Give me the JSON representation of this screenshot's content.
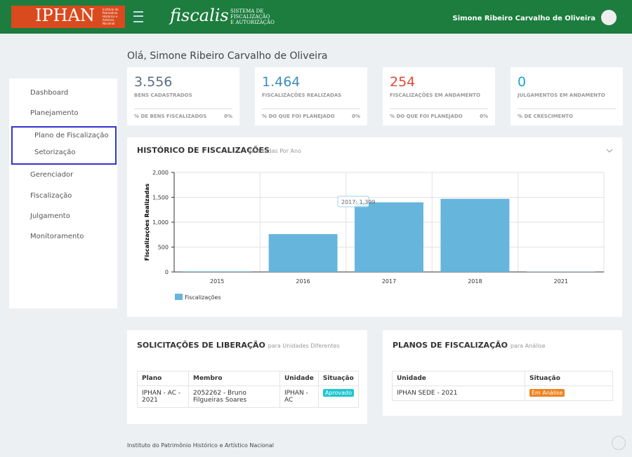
{
  "header": {
    "logo": "IPHAN",
    "logo_caption": "Instituto do Patrimônio Histórico e Artístico Nacional",
    "app_name": "fiscalis",
    "app_subtitle": [
      "SISTEMA DE",
      "FISCALIZAÇÃO",
      "E AUTORIZAÇÃO"
    ],
    "user": "Simone Ribeiro Carvalho de Oliveira"
  },
  "greeting": "Olá, Simone Ribeiro Carvalho de Oliveira",
  "sidebar": {
    "items": [
      "Dashboard",
      "Planejamento",
      "Gerenciador",
      "Fiscalização",
      "Julgamento",
      "Monitoramento"
    ],
    "submenu": [
      "Plano de Fiscalização",
      "Setorização"
    ]
  },
  "cards": [
    {
      "value": "3.556",
      "label": "BENS CADASTRADOS",
      "footer": "% DE BENS FISCALIZADOS",
      "percent": "0%"
    },
    {
      "value": "1.464",
      "label": "FISCALIZAÇÕES REALIZADAS",
      "footer": "% DO QUE FOI PLANEJADO",
      "percent": "0%"
    },
    {
      "value": "254",
      "label": "FISCALIZAÇÕES EM ANDAMENTO",
      "footer": "% DO QUE FOI PLANEJADO",
      "percent": "0%"
    },
    {
      "value": "0",
      "label": "JULGAMENTOS EM ANDAMENTO",
      "footer": "% DE CRESCIMENTO",
      "percent": ""
    }
  ],
  "chart_data": {
    "type": "bar",
    "title": "HISTÓRICO DE FISCALIZAÇÕES",
    "subtitle": "Realizadas Por Ano",
    "y_label": "Fiscalizações Realizadas",
    "categories": [
      "2015",
      "2016",
      "2017",
      "2018",
      "2021"
    ],
    "series": [
      {
        "name": "Fiscalizações",
        "color": "#65b5dc",
        "values": [
          12,
          760,
          1399,
          1470,
          5
        ]
      }
    ],
    "ylim": [
      0,
      2000
    ],
    "yticks": [
      0,
      {
        "value": 500,
        "label": "500"
      },
      {
        "value": 1000,
        "label": "1,000"
      },
      {
        "value": 1500,
        "label": "1,500"
      },
      {
        "value": 2000,
        "label": "2,000"
      }
    ],
    "grid": true,
    "tooltip": "2017: 1,399"
  },
  "solicitacoes": {
    "title": "SOLICITAÇÕES DE LIBERAÇÃO",
    "subtitle": "para Unidades Diferentes",
    "columns": [
      "Plano",
      "Membro",
      "Unidade",
      "Situação"
    ],
    "rows": [
      [
        "IPHAN - AC - 2021",
        "2052262 - Bruno Filgueiras Soares",
        "IPHAN - AC",
        "Aprovado"
      ]
    ]
  },
  "planos": {
    "title": "PLANOS DE FISCALIZAÇÃO",
    "subtitle": "para Análise",
    "columns": [
      "Unidade",
      "Situação"
    ],
    "rows": [
      [
        "IPHAN SEDE - 2021",
        "Em Análise"
      ]
    ]
  },
  "footer": "Instituto do Patrimônio Histórico e Artístico Nacional"
}
